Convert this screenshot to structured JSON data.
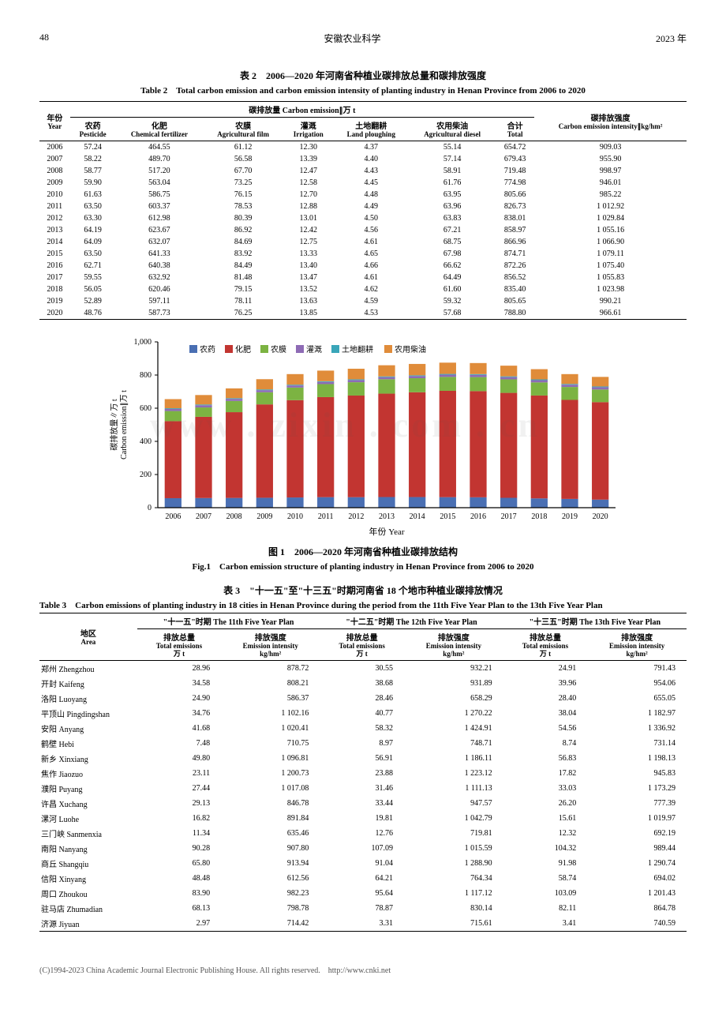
{
  "header": {
    "page": "48",
    "journal": "安徽农业科学",
    "year": "2023 年"
  },
  "table2": {
    "caption_cn": "表 2　2006—2020 年河南省种植业碳排放总量和碳排放强度",
    "caption_en": "Table 2　Total carbon emission and carbon emission intensity of planting industry in Henan Province from 2006 to 2020",
    "group_header": "碳排放量 Carbon emission∥万 t",
    "cols": {
      "year_cn": "年份",
      "year_en": "Year",
      "pest_cn": "农药",
      "pest_en": "Pesticide",
      "fert_cn": "化肥",
      "fert_en": "Chemical fertilizer",
      "film_cn": "农膜",
      "film_en": "Agricultural film",
      "irr_cn": "灌溉",
      "irr_en": "Irrigation",
      "plough_cn": "土地翻耕",
      "plough_en": "Land ploughing",
      "diesel_cn": "农用柴油",
      "diesel_en": "Agricultural diesel",
      "total_cn": "合计",
      "total_en": "Total",
      "intensity_cn": "碳排放强度",
      "intensity_en": "Carbon emission intensity∥kg/hm²"
    },
    "rows": [
      [
        "2006",
        "57.24",
        "464.55",
        "61.12",
        "12.30",
        "4.37",
        "55.14",
        "654.72",
        "909.03"
      ],
      [
        "2007",
        "58.22",
        "489.70",
        "56.58",
        "13.39",
        "4.40",
        "57.14",
        "679.43",
        "955.90"
      ],
      [
        "2008",
        "58.77",
        "517.20",
        "67.70",
        "12.47",
        "4.43",
        "58.91",
        "719.48",
        "998.97"
      ],
      [
        "2009",
        "59.90",
        "563.04",
        "73.25",
        "12.58",
        "4.45",
        "61.76",
        "774.98",
        "946.01"
      ],
      [
        "2010",
        "61.63",
        "586.75",
        "76.15",
        "12.70",
        "4.48",
        "63.95",
        "805.66",
        "985.22"
      ],
      [
        "2011",
        "63.50",
        "603.37",
        "78.53",
        "12.88",
        "4.49",
        "63.96",
        "826.73",
        "1 012.92"
      ],
      [
        "2012",
        "63.30",
        "612.98",
        "80.39",
        "13.01",
        "4.50",
        "63.83",
        "838.01",
        "1 029.84"
      ],
      [
        "2013",
        "64.19",
        "623.67",
        "86.92",
        "12.42",
        "4.56",
        "67.21",
        "858.97",
        "1 055.16"
      ],
      [
        "2014",
        "64.09",
        "632.07",
        "84.69",
        "12.75",
        "4.61",
        "68.75",
        "866.96",
        "1 066.90"
      ],
      [
        "2015",
        "63.50",
        "641.33",
        "83.92",
        "13.33",
        "4.65",
        "67.98",
        "874.71",
        "1 079.11"
      ],
      [
        "2016",
        "62.71",
        "640.38",
        "84.49",
        "13.40",
        "4.66",
        "66.62",
        "872.26",
        "1 075.40"
      ],
      [
        "2017",
        "59.55",
        "632.92",
        "81.48",
        "13.47",
        "4.61",
        "64.49",
        "856.52",
        "1 055.83"
      ],
      [
        "2018",
        "56.05",
        "620.46",
        "79.15",
        "13.52",
        "4.62",
        "61.60",
        "835.40",
        "1 023.98"
      ],
      [
        "2019",
        "52.89",
        "597.11",
        "78.11",
        "13.63",
        "4.59",
        "59.32",
        "805.65",
        "990.21"
      ],
      [
        "2020",
        "48.76",
        "587.73",
        "76.25",
        "13.85",
        "4.53",
        "57.68",
        "788.80",
        "966.61"
      ]
    ]
  },
  "chart": {
    "type": "stacked-bar",
    "title_cn": "图 1　2006—2020 年河南省种植业碳排放结构",
    "title_en": "Fig.1　Carbon emission structure of planting industry in Henan Province from 2006 to 2020",
    "y_label_cn": "碳排放量∥万 t",
    "y_label_en": "Carbon emission∥万 t",
    "x_label": "年份 Year",
    "ylim": [
      0,
      1000
    ],
    "ytick_step": 200,
    "categories": [
      "2006",
      "2007",
      "2008",
      "2009",
      "2010",
      "2011",
      "2012",
      "2013",
      "2014",
      "2015",
      "2016",
      "2017",
      "2018",
      "2019",
      "2020"
    ],
    "series": [
      {
        "name": "农药",
        "color": "#4a6fb3",
        "values": [
          57.24,
          58.22,
          58.77,
          59.9,
          61.63,
          63.5,
          63.3,
          64.19,
          64.09,
          63.5,
          62.71,
          59.55,
          56.05,
          52.89,
          48.76
        ]
      },
      {
        "name": "化肥",
        "color": "#c23531",
        "values": [
          464.55,
          489.7,
          517.2,
          563.04,
          586.75,
          603.37,
          612.98,
          623.67,
          632.07,
          641.33,
          640.38,
          632.92,
          620.46,
          597.11,
          587.73
        ]
      },
      {
        "name": "农膜",
        "color": "#7cb342",
        "values": [
          61.12,
          56.58,
          67.7,
          73.25,
          76.15,
          78.53,
          80.39,
          86.92,
          84.69,
          83.92,
          84.49,
          81.48,
          79.15,
          78.11,
          76.25
        ]
      },
      {
        "name": "灌溉",
        "color": "#8e6bb5",
        "values": [
          12.3,
          13.39,
          12.47,
          12.58,
          12.7,
          12.88,
          13.01,
          12.42,
          12.75,
          13.33,
          13.4,
          13.47,
          13.52,
          13.63,
          13.85
        ]
      },
      {
        "name": "土地翻耕",
        "color": "#3aa6b9",
        "values": [
          4.37,
          4.4,
          4.43,
          4.45,
          4.48,
          4.49,
          4.5,
          4.56,
          4.61,
          4.65,
          4.66,
          4.61,
          4.62,
          4.59,
          4.53
        ]
      },
      {
        "name": "农用柴油",
        "color": "#e08c3a",
        "values": [
          55.14,
          57.14,
          58.91,
          61.76,
          63.95,
          63.96,
          63.83,
          67.21,
          68.75,
          67.98,
          66.62,
          64.49,
          61.6,
          59.32,
          57.68
        ]
      }
    ],
    "bar_width": 0.55,
    "background_color": "#ffffff",
    "axis_color": "#000000",
    "tick_fontsize": 10
  },
  "table3": {
    "caption_cn": "表 3　\"十一五\"至\"十三五\"时期河南省 18 个地市种植业碳排放情况",
    "caption_en": "Table 3　Carbon emissions of planting industry in 18 cities in Henan Province during the period from the 11th Five Year Plan to the 13th Five Year Plan",
    "area_cn": "地区",
    "area_en": "Area",
    "periods": [
      {
        "cn": "\"十一五\"时期 The 11th Five Year Plan"
      },
      {
        "cn": "\"十二五\"时期 The 12th Five Year Plan"
      },
      {
        "cn": "\"十三五\"时期 The 13th Five Year Plan"
      }
    ],
    "subcols": {
      "emis_cn": "排放总量",
      "emis_en": "Total emissions",
      "emis_unit": "万 t",
      "int_cn": "排放强度",
      "int_en": "Emission intensity",
      "int_unit": "kg/hm²"
    },
    "rows": [
      [
        "郑州 Zhengzhou",
        "28.96",
        "878.72",
        "30.55",
        "932.21",
        "24.91",
        "791.43"
      ],
      [
        "开封 Kaifeng",
        "34.58",
        "808.21",
        "38.68",
        "931.89",
        "39.96",
        "954.06"
      ],
      [
        "洛阳 Luoyang",
        "24.90",
        "586.37",
        "28.46",
        "658.29",
        "28.40",
        "655.05"
      ],
      [
        "平顶山 Pingdingshan",
        "34.76",
        "1 102.16",
        "40.77",
        "1 270.22",
        "38.04",
        "1 182.97"
      ],
      [
        "安阳 Anyang",
        "41.68",
        "1 020.41",
        "58.32",
        "1 424.91",
        "54.56",
        "1 336.92"
      ],
      [
        "鹤壁 Hebi",
        "7.48",
        "710.75",
        "8.97",
        "748.71",
        "8.74",
        "731.14"
      ],
      [
        "新乡 Xinxiang",
        "49.80",
        "1 096.81",
        "56.91",
        "1 186.11",
        "56.83",
        "1 198.13"
      ],
      [
        "焦作 Jiaozuo",
        "23.11",
        "1 200.73",
        "23.88",
        "1 223.12",
        "17.82",
        "945.83"
      ],
      [
        "濮阳 Puyang",
        "27.44",
        "1 017.08",
        "31.46",
        "1 111.13",
        "33.03",
        "1 173.29"
      ],
      [
        "许昌 Xuchang",
        "29.13",
        "846.78",
        "33.44",
        "947.57",
        "26.20",
        "777.39"
      ],
      [
        "漯河 Luohe",
        "16.82",
        "891.84",
        "19.81",
        "1 042.79",
        "15.61",
        "1 019.97"
      ],
      [
        "三门峡 Sanmenxia",
        "11.34",
        "635.46",
        "12.76",
        "719.81",
        "12.32",
        "692.19"
      ],
      [
        "南阳 Nanyang",
        "90.28",
        "907.80",
        "107.09",
        "1 015.59",
        "104.32",
        "989.44"
      ],
      [
        "商丘 Shangqiu",
        "65.80",
        "913.94",
        "91.04",
        "1 288.90",
        "91.98",
        "1 290.74"
      ],
      [
        "信阳 Xinyang",
        "48.48",
        "612.56",
        "64.21",
        "764.34",
        "58.74",
        "694.02"
      ],
      [
        "周口 Zhoukou",
        "83.90",
        "982.23",
        "95.64",
        "1 117.12",
        "103.09",
        "1 201.43"
      ],
      [
        "驻马店 Zhumadian",
        "68.13",
        "798.78",
        "78.87",
        "830.14",
        "82.11",
        "864.78"
      ],
      [
        "济源 Jiyuan",
        "2.97",
        "714.42",
        "3.31",
        "715.61",
        "3.41",
        "740.59"
      ]
    ]
  },
  "footer": "(C)1994-2023 China Academic Journal Electronic Publishing House. All rights reserved.　http://www.cnki.net",
  "watermark": "www . zixin . com . cn"
}
